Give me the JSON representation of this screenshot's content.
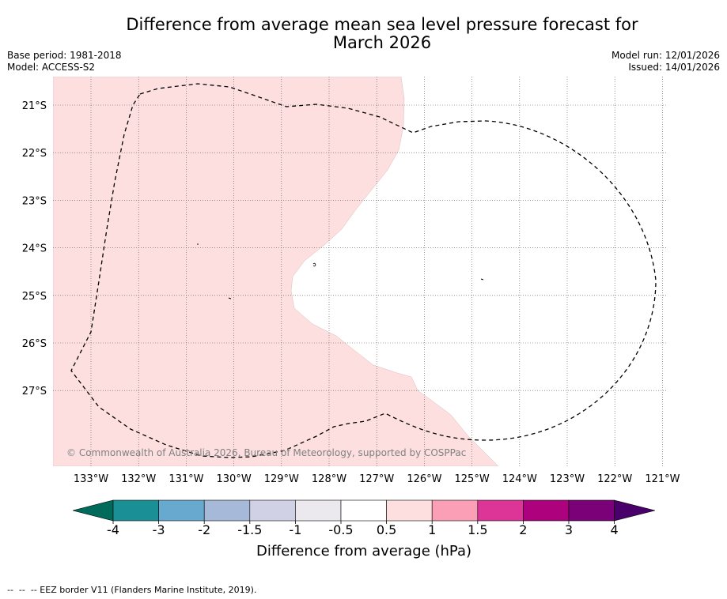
{
  "header": {
    "title_line1": "Difference from average mean sea level pressure forecast for",
    "title_line2": "March 2026",
    "base_period": "Base period: 1981-2018",
    "model": "Model: ACCESS-S2",
    "model_run": "Model run: 12/01/2026",
    "issued": "Issued: 14/01/2026"
  },
  "map": {
    "lat_labels": [
      "21°S",
      "22°S",
      "23°S",
      "24°S",
      "25°S",
      "26°S",
      "27°S"
    ],
    "lon_labels": [
      "133°W",
      "132°W",
      "131°W",
      "130°W",
      "129°W",
      "128°W",
      "127°W",
      "126°W",
      "125°W",
      "124°W",
      "123°W",
      "122°W",
      "121°W"
    ],
    "copyright": "© Commonwealth of Australia 2026, Bureau of Meteorology, supported by COSPPac",
    "anomaly_fill_color": "#fddfdf",
    "anomaly_category": "0.5 to 1"
  },
  "colorbar": {
    "label": "Difference from average (hPa)",
    "ticks": [
      "-4",
      "-3",
      "-2",
      "-1.5",
      "-1",
      "-0.5",
      "0.5",
      "1",
      "1.5",
      "2",
      "3",
      "4"
    ],
    "colors": [
      "#1a9096",
      "#68aacf",
      "#a6b9d9",
      "#d0d1e5",
      "#ebe9ee",
      "#ffffff",
      "#fddfdf",
      "#fa9fb5",
      "#dd3497",
      "#ae017e",
      "#7a0177"
    ],
    "under_color": "#006b5a",
    "over_color": "#49006a"
  },
  "footer": {
    "legend_text": "--  --  -- EEZ border V11 (Flanders Marine Institute, 2019)."
  }
}
